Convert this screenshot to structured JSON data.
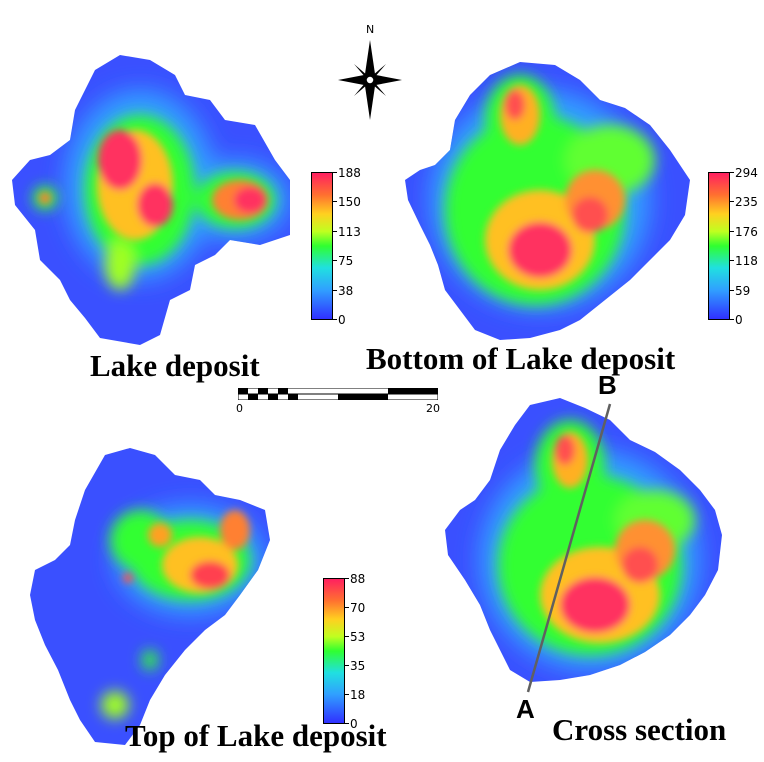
{
  "compass": {
    "north_label": "N",
    "icon": "compass-rose-icon"
  },
  "scalebar": {
    "start_label": "0",
    "end_label": "20"
  },
  "colors": {
    "low": "#3030ff",
    "mid_low": "#30a0ff",
    "mid": "#30ff30",
    "mid_high": "#ffd020",
    "high": "#ff2060"
  },
  "panels": [
    {
      "title": "Lake deposit",
      "colorbar_ticks": [
        "188",
        "150",
        "113",
        "75",
        "38",
        "0"
      ]
    },
    {
      "title": "Bottom of Lake deposit",
      "colorbar_ticks": [
        "294",
        "235",
        "176",
        "118",
        "59",
        "0"
      ]
    },
    {
      "title": "Top of Lake deposit",
      "colorbar_ticks": [
        "88",
        "70",
        "53",
        "35",
        "18",
        "0"
      ]
    },
    {
      "title": "Cross section",
      "line_start_label": "A",
      "line_end_label": "B"
    }
  ]
}
